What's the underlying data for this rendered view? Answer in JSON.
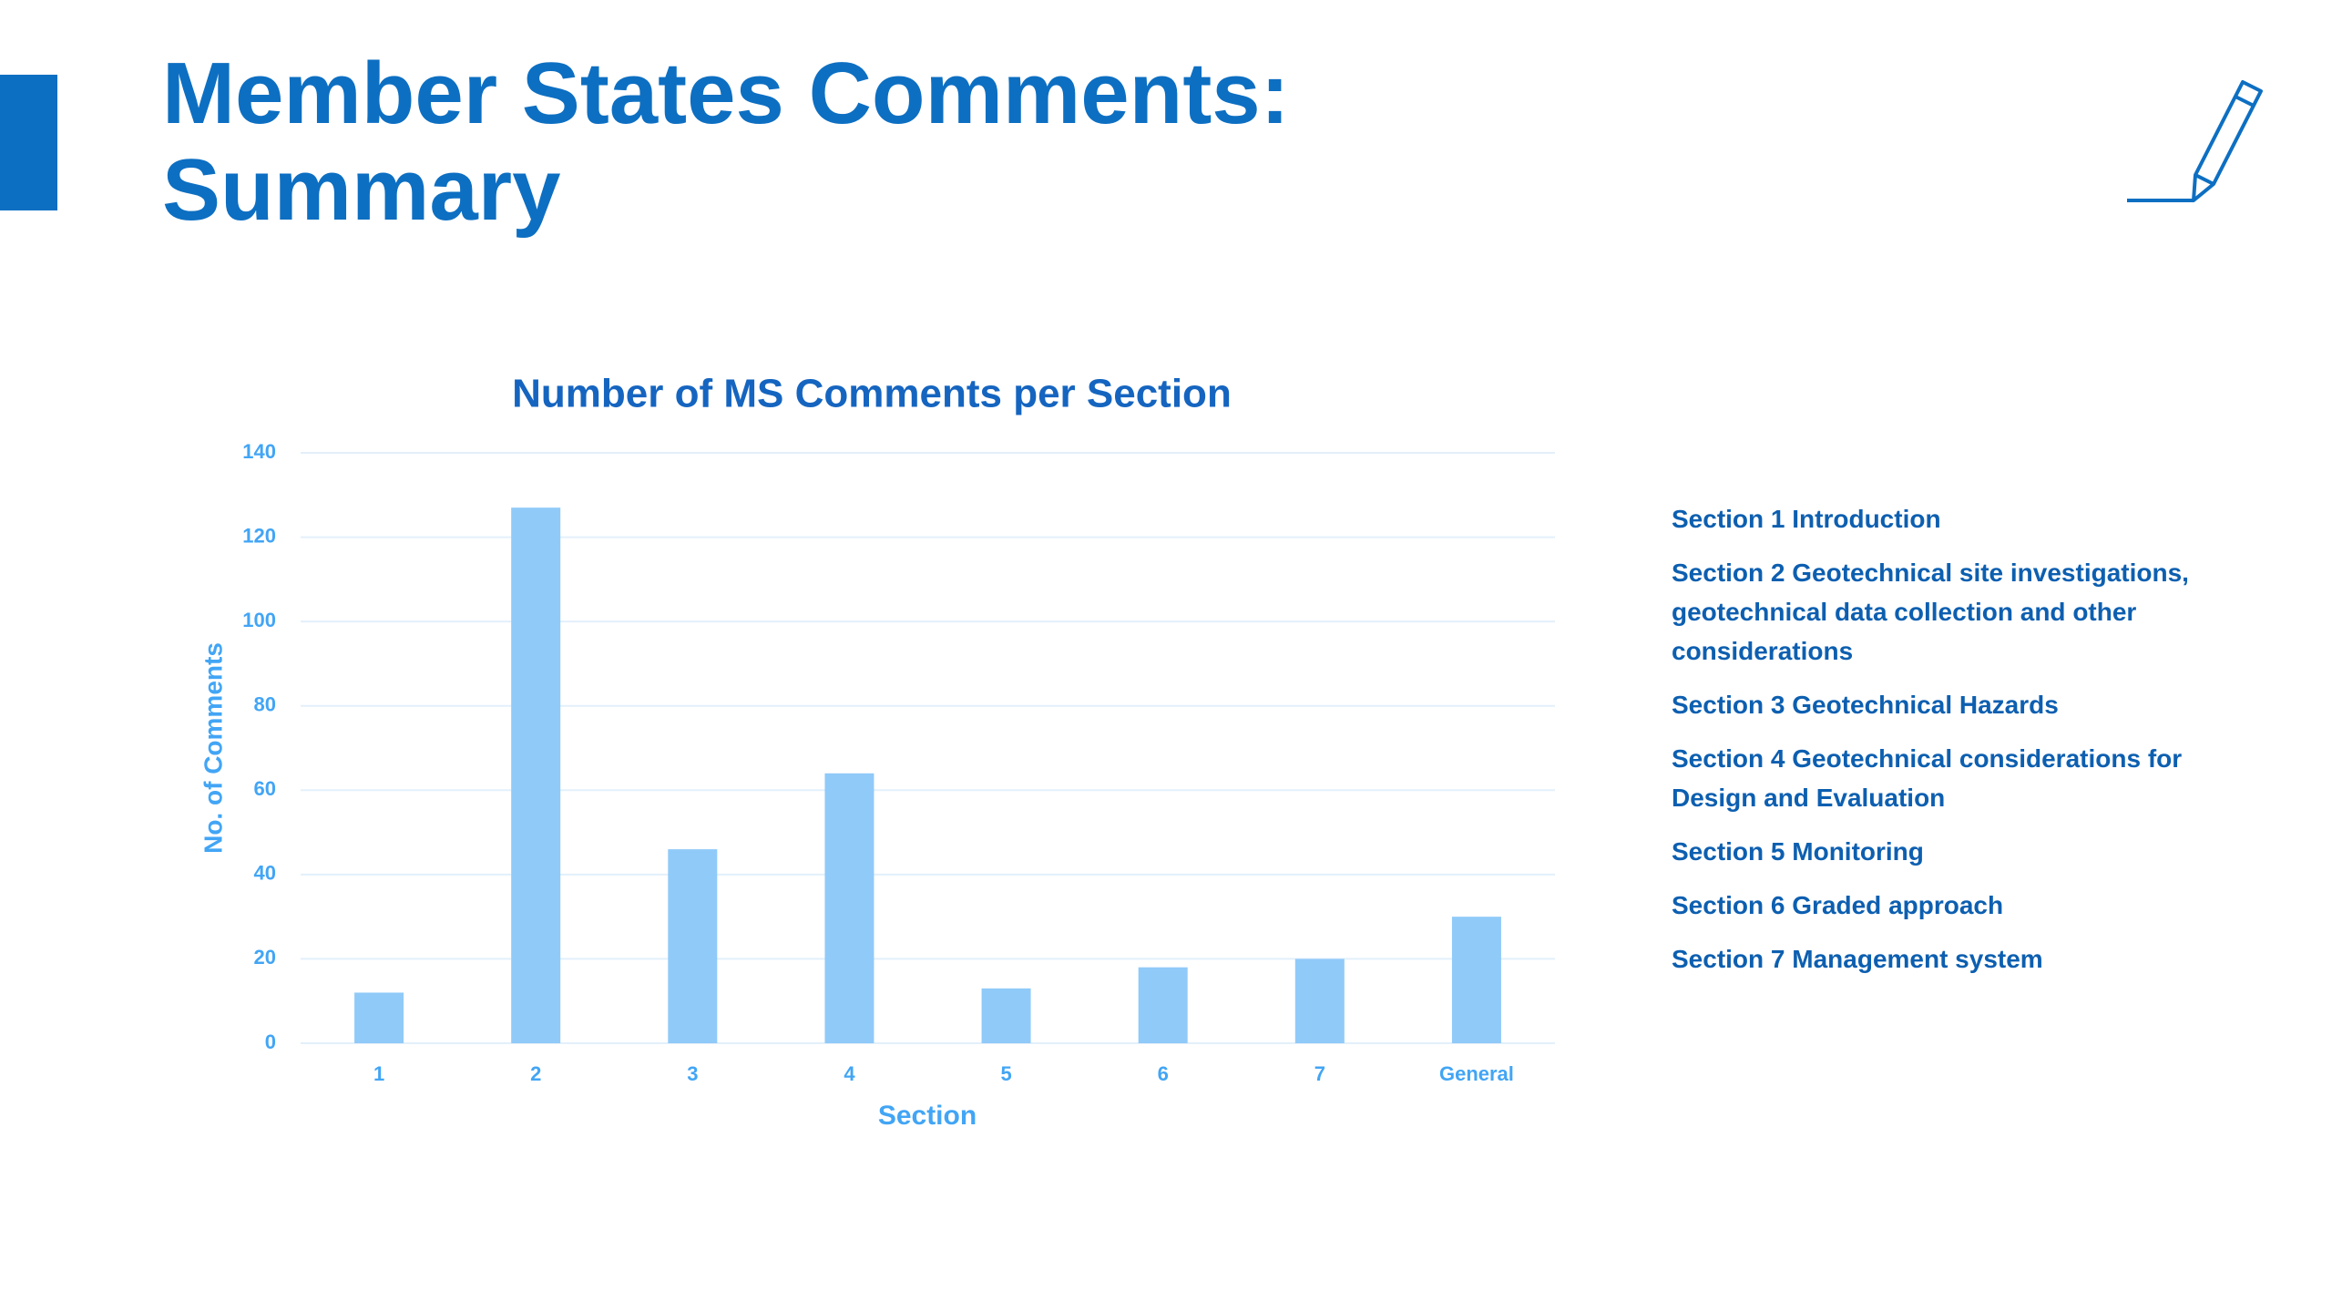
{
  "header": {
    "title": [
      "Member States Comments:",
      "Summary"
    ]
  },
  "chart_data": {
    "type": "bar",
    "title": "Number of MS Comments per Section",
    "x_label": "Section",
    "y_label": "No. of Comments",
    "categories": [
      "1",
      "2",
      "3",
      "4",
      "5",
      "6",
      "7",
      "General"
    ],
    "values": [
      12,
      127,
      46,
      64,
      13,
      18,
      20,
      30
    ],
    "color": "#90caf9",
    "ylim": [
      0,
      140
    ],
    "yticks": [
      0,
      20,
      40,
      60,
      80,
      100,
      120,
      140
    ],
    "grid": true
  },
  "sections": [
    "Section 1 Introduction",
    "Section 2 Geotechnical site investigations, geotechnical data collection and other considerations",
    "Section 3 Geotechnical Hazards",
    "Section 4 Geotechnical considerations for Design and Evaluation",
    "Section 5 Monitoring",
    "Section 6 Graded approach",
    "Section 7 Management system"
  ]
}
